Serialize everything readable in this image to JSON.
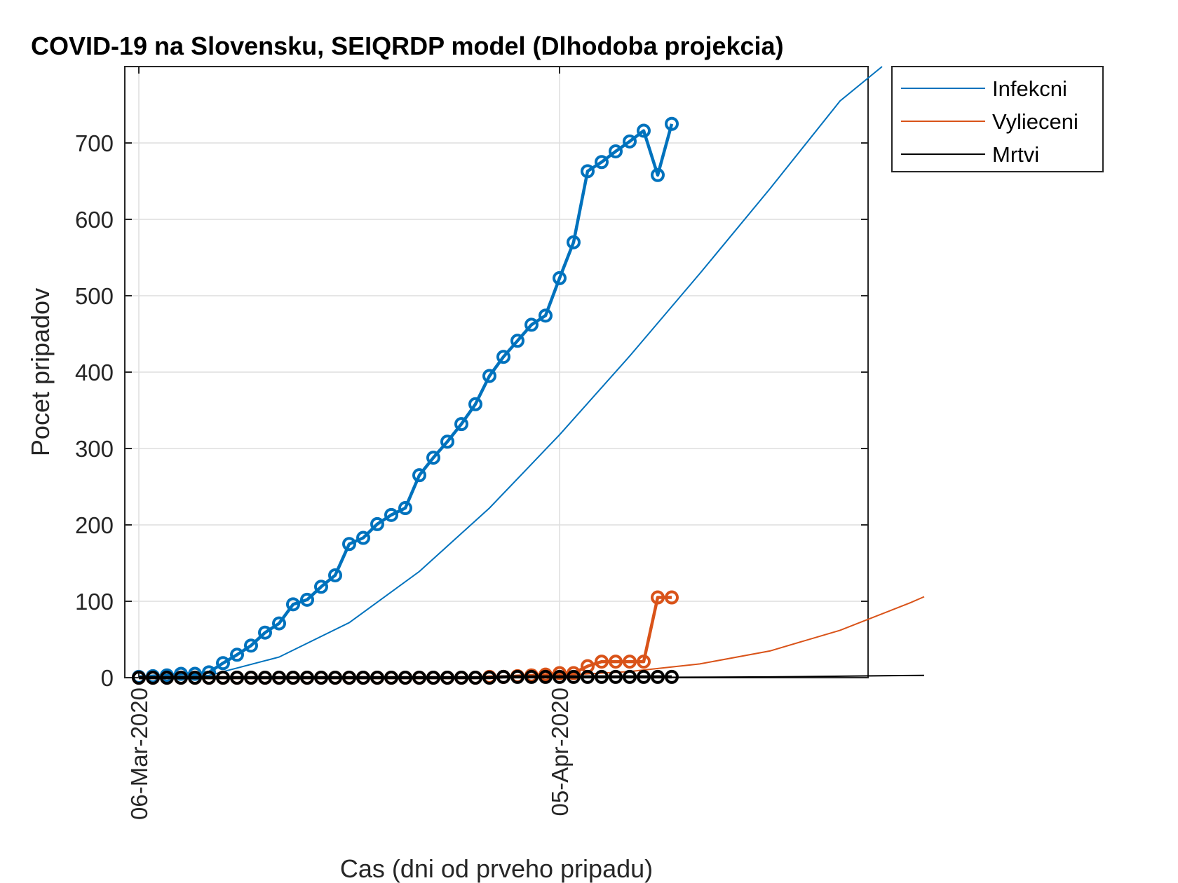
{
  "chart_data": {
    "type": "line",
    "title": "COVID-19 na Slovensku, SEIQRDP model (Dlhodoba projekcia)",
    "xlabel": "Cas (dni od prveho pripadu)",
    "ylabel": "Pocet pripadov",
    "x_start": "2020-03-06",
    "xlim": [
      "2020-03-05",
      "2020-04-27"
    ],
    "ylim": [
      0,
      800
    ],
    "xticks": [
      "06-Mar-2020",
      "05-Apr-2020"
    ],
    "yticks": [
      0,
      100,
      200,
      300,
      400,
      500,
      600,
      700
    ],
    "grid": true,
    "legend_position": "outside-top-right",
    "legend": [
      "Infekcni",
      "Vylieceni",
      "Mrtvi"
    ],
    "colors": {
      "infekcni": "#0072BD",
      "vylieceni": "#D95319",
      "mrtvi": "#000000"
    },
    "observed": {
      "infekcni": [
        1,
        2,
        3,
        5,
        5,
        7,
        19,
        30,
        42,
        59,
        71,
        96,
        102,
        119,
        134,
        175,
        183,
        201,
        213,
        222,
        265,
        288,
        309,
        332,
        358,
        395,
        420,
        441,
        462,
        474,
        523,
        570,
        663,
        675,
        689,
        702,
        716,
        658,
        725
      ],
      "vylieceni": [
        0,
        0,
        0,
        0,
        0,
        0,
        0,
        0,
        0,
        0,
        0,
        0,
        0,
        0,
        0,
        0,
        0,
        0,
        0,
        0,
        0,
        0,
        0,
        0,
        0,
        1,
        1,
        2,
        3,
        4,
        6,
        6,
        15,
        21,
        21,
        21,
        21,
        105,
        105
      ],
      "mrtvi": [
        0,
        0,
        0,
        0,
        0,
        0,
        0,
        0,
        0,
        0,
        0,
        0,
        0,
        0,
        0,
        0,
        0,
        0,
        0,
        0,
        0,
        0,
        0,
        0,
        0,
        0,
        1,
        1,
        1,
        1,
        1,
        1,
        1,
        1,
        1,
        1,
        1,
        1,
        1
      ]
    },
    "model": {
      "infekcni": [
        [
          0,
          0
        ],
        [
          5,
          3
        ],
        [
          10,
          27
        ],
        [
          15,
          72
        ],
        [
          20,
          139
        ],
        [
          25,
          222
        ],
        [
          30,
          318
        ],
        [
          35,
          421
        ],
        [
          40,
          529
        ],
        [
          45,
          640
        ],
        [
          50,
          755
        ],
        [
          53,
          800
        ]
      ],
      "vylieceni": [
        [
          0,
          0
        ],
        [
          20,
          0
        ],
        [
          25,
          1
        ],
        [
          30,
          3
        ],
        [
          35,
          8
        ],
        [
          40,
          18
        ],
        [
          45,
          35
        ],
        [
          50,
          62
        ],
        [
          55,
          98
        ],
        [
          56,
          106
        ]
      ],
      "mrtvi": [
        [
          0,
          0
        ],
        [
          30,
          0
        ],
        [
          45,
          1
        ],
        [
          56,
          3
        ]
      ]
    }
  }
}
